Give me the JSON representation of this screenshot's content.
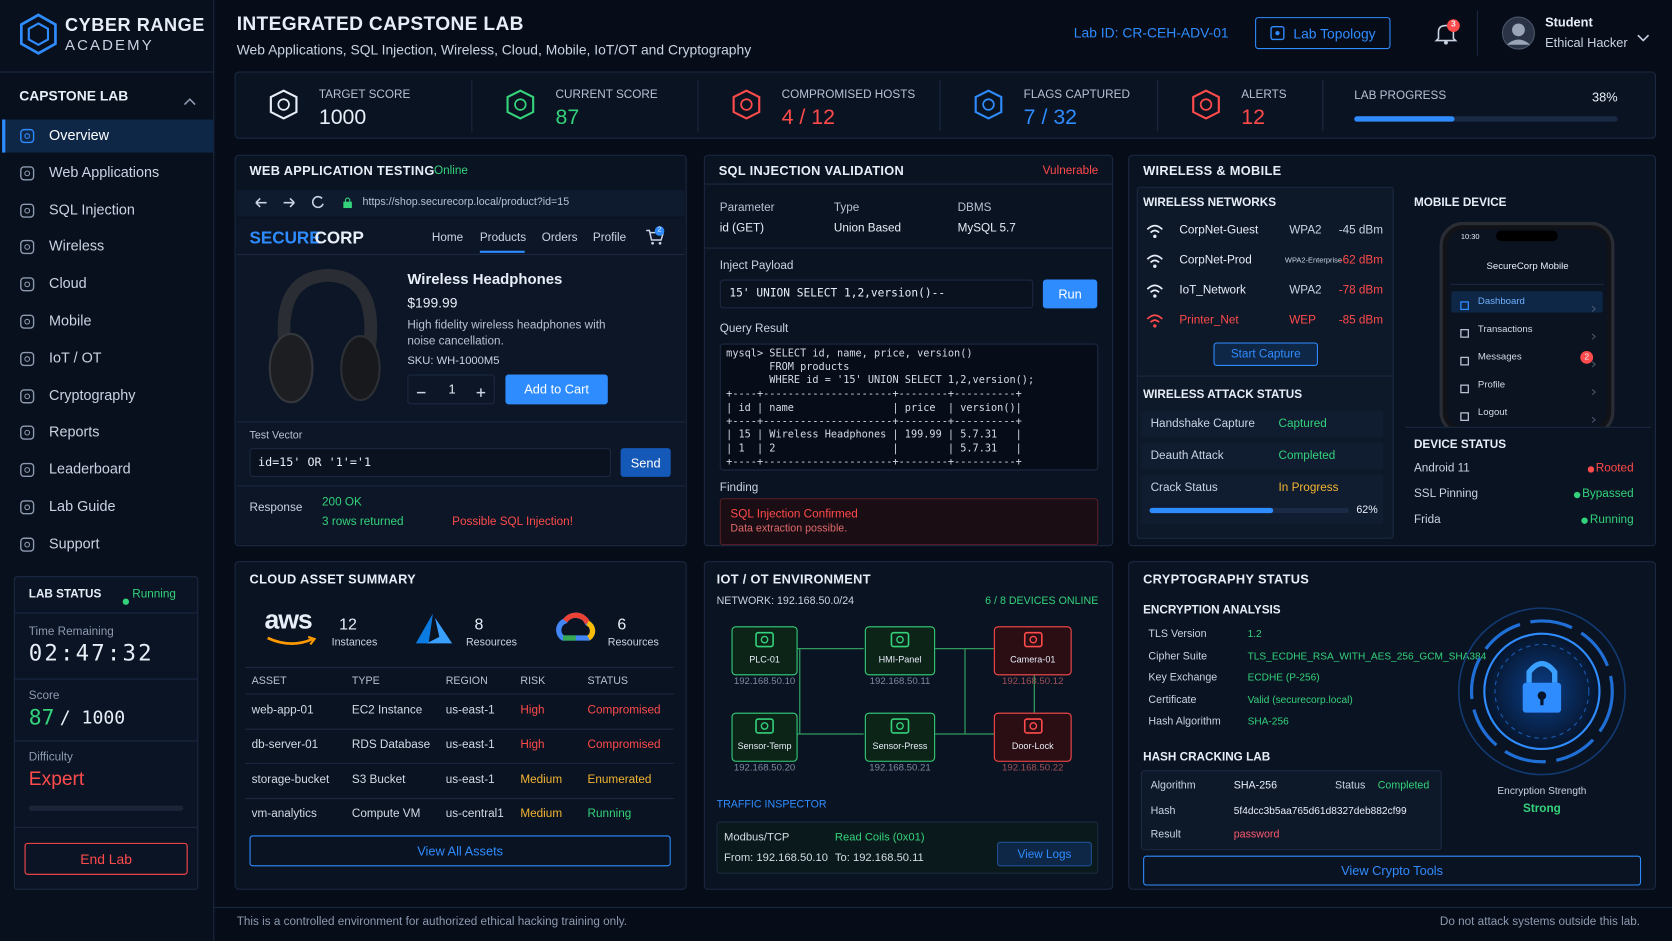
{
  "sidebar": {
    "brand": {
      "name": "CYBER RANGE",
      "subtitle": "ACADEMY"
    },
    "section": "CAPSTONE LAB",
    "nav": [
      "Overview",
      "Web Applications",
      "SQL Injection",
      "Wireless",
      "Cloud",
      "Mobile",
      "IoT / OT",
      "Cryptography",
      "Reports",
      "Leaderboard",
      "Lab Guide",
      "Support"
    ],
    "lab_status": {
      "title": "LAB STATUS",
      "state": "Running",
      "time_label": "Time Remaining",
      "time": "02:47:32",
      "score_label": "Score",
      "score": "87",
      "score_total": "/ 1000",
      "difficulty_label": "Difficulty",
      "difficulty": "Expert",
      "end_button": "End Lab"
    }
  },
  "header": {
    "title": "INTEGRATED CAPSTONE LAB",
    "subtitle": "Web Applications, SQL Injection, Wireless, Cloud, Mobile, IoT/OT and Cryptography",
    "lab_id": "Lab ID: CR-CEH-ADV-01",
    "topology_button": "Lab Topology",
    "notifications": "3",
    "user": {
      "name": "Student",
      "role": "Ethical Hacker"
    }
  },
  "stats": [
    {
      "label": "TARGET SCORE",
      "value": "1000",
      "color": "#e8eef8"
    },
    {
      "label": "CURRENT SCORE",
      "value": "87",
      "color": "#34d27b"
    },
    {
      "label": "COMPROMISED HOSTS",
      "value": "4 / 12",
      "color": "#ff4b4b"
    },
    {
      "label": "FLAGS CAPTURED",
      "value": "7 / 32",
      "color": "#2f8cff"
    },
    {
      "label": "ALERTS",
      "value": "12",
      "color": "#ff4b4b"
    }
  ],
  "progress": {
    "label": "LAB PROGRESS",
    "value": 38,
    "value_label": "38%"
  },
  "web": {
    "title": "WEB APPLICATION TESTING",
    "status": "Online",
    "url": "https://shop.securecorp.local/product?id=15",
    "brand_a": "SECURE",
    "brand_b": "CORP",
    "nav": [
      "Home",
      "Products",
      "Orders",
      "Profile"
    ],
    "cart_badge": "2",
    "product": {
      "name": "Wireless Headphones",
      "price": "$199.99",
      "description": "High fidelity wireless headphones with\nnoise cancellation.",
      "sku": "SKU: WH-1000M5",
      "quantity": "1",
      "add_button": "Add to Cart"
    },
    "test_label": "Test Vector",
    "test_input": "id=15' OR '1'='1",
    "send_button": "Send",
    "response_label": "Response",
    "response_code": "200 OK",
    "response_rows": "3 rows returned",
    "warning": "Possible SQL Injection!"
  },
  "sql": {
    "title": "SQL INJECTION VALIDATION",
    "status": "Vulnerable",
    "headers": [
      "Parameter",
      "Type",
      "DBMS"
    ],
    "values": [
      "id (GET)",
      "Union Based",
      "MySQL 5.7"
    ],
    "payload_label": "Inject Payload",
    "payload": "15' UNION SELECT 1,2,version()--",
    "run_button": "Run",
    "result_label": "Query Result",
    "console": [
      "mysql> SELECT id, name, price, version()",
      "       FROM products",
      "       WHERE id = '15' UNION SELECT 1,2,version();",
      "+----+---------------------+--------+----------+",
      "| id | name                | price  | version()|",
      "+----+---------------------+--------+----------+",
      "| 15 | Wireless Headphones | 199.99 | 5.7.31   |",
      "| 1  | 2                   |        | 5.7.31   |",
      "+----+---------------------+--------+----------+"
    ],
    "finding_label": "Finding",
    "finding_title": "SQL Injection Confirmed",
    "finding_text": "Data extraction possible."
  },
  "wireless": {
    "title": "WIRELESS & MOBILE",
    "networks_title": "WIRELESS NETWORKS",
    "networks": [
      {
        "name": "CorpNet-Guest",
        "security": "WPA2",
        "signal": "-45 dBm",
        "color": "#e8eef8"
      },
      {
        "name": "CorpNet-Prod",
        "security": "WPA2-Enterprise",
        "signal": "-62 dBm",
        "color": "#e8eef8"
      },
      {
        "name": "IoT_Network",
        "security": "WPA2",
        "signal": "-78 dBm",
        "color": "#e8eef8"
      },
      {
        "name": "Printer_Net",
        "security": "WEP",
        "signal": "-85 dBm",
        "color": "#ff4b4b"
      }
    ],
    "capture_button": "Start Capture",
    "attack_title": "WIRELESS ATTACK STATUS",
    "attacks": [
      {
        "label": "Handshake Capture",
        "value": "Captured",
        "color": "#34d27b"
      },
      {
        "label": "Deauth Attack",
        "value": "Completed",
        "color": "#34d27b"
      },
      {
        "label": "Crack Status",
        "value": "In Progress",
        "color": "#f2b533"
      }
    ],
    "crack_progress": {
      "value": 62,
      "value_label": "62%"
    },
    "mobile_title": "MOBILE DEVICE",
    "phone": {
      "time": "10:30",
      "app": "SecureCorp Mobile",
      "menu": [
        "Dashboard",
        "Transactions",
        "Messages",
        "Profile",
        "Logout"
      ],
      "badge": "2"
    },
    "device_title": "DEVICE STATUS",
    "device": [
      {
        "label": "Android 11",
        "value": "Rooted",
        "color": "#ff4b4b"
      },
      {
        "label": "SSL Pinning",
        "value": "Bypassed",
        "color": "#34d27b"
      },
      {
        "label": "Frida",
        "value": "Running",
        "color": "#34d27b"
      }
    ]
  },
  "cloud": {
    "title": "CLOUD ASSET SUMMARY",
    "providers": [
      {
        "logo": "aws",
        "count": "12",
        "unit": "Instances"
      },
      {
        "count": "8",
        "unit": "Resources"
      },
      {
        "count": "6",
        "unit": "Resources"
      }
    ],
    "table": {
      "headers": [
        "ASSET",
        "TYPE",
        "REGION",
        "RISK",
        "STATUS"
      ],
      "rows": [
        [
          "web-app-01",
          "EC2 Instance",
          "us-east-1",
          "High",
          "Compromised"
        ],
        [
          "db-server-01",
          "RDS Database",
          "us-east-1",
          "High",
          "Compromised"
        ],
        [
          "storage-bucket",
          "S3 Bucket",
          "us-east-1",
          "Medium",
          "Enumerated"
        ],
        [
          "vm-analytics",
          "Compute VM",
          "us-central1",
          "Medium",
          "Running"
        ]
      ],
      "row_colors": [
        [
          "#ff4b4b",
          "#ff4b4b"
        ],
        [
          "#ff4b4b",
          "#ff4b4b"
        ],
        [
          "#f2b533",
          "#f2b533"
        ],
        [
          "#f2b533",
          "#34d27b"
        ]
      ]
    },
    "button": "View All Assets"
  },
  "iot": {
    "title": "IOT / OT ENVIRONMENT",
    "network": "NETWORK: 192.168.50.0/24",
    "online": "6 / 8 DEVICES ONLINE",
    "devices": [
      {
        "name": "PLC-01",
        "ip": "192.168.50.10",
        "color": "#34d27b"
      },
      {
        "name": "HMI-Panel",
        "ip": "192.168.50.11",
        "color": "#34d27b"
      },
      {
        "name": "Camera-01",
        "ip": "192.168.50.12",
        "color": "#ff4b4b"
      },
      {
        "name": "Sensor-Temp",
        "ip": "192.168.50.20",
        "color": "#34d27b"
      },
      {
        "name": "Sensor-Press",
        "ip": "192.168.50.21",
        "color": "#34d27b"
      },
      {
        "name": "Door-Lock",
        "ip": "192.168.50.22",
        "color": "#ff4b4b"
      }
    ],
    "inspector_title": "TRAFFIC INSPECTOR",
    "protocol": "Modbus/TCP",
    "function": "Read Coils (0x01)",
    "from": "From: 192.168.50.10",
    "to": "To: 192.168.50.11",
    "button": "View Logs"
  },
  "crypto": {
    "title": "CRYPTOGRAPHY STATUS",
    "analysis_title": "ENCRYPTION ANALYSIS",
    "analysis": [
      [
        "TLS Version",
        "1.2"
      ],
      [
        "Cipher Suite",
        "TLS_ECDHE_RSA_WITH_AES_256_GCM_SHA384"
      ],
      [
        "Key Exchange",
        "ECDHE (P-256)"
      ],
      [
        "Certificate",
        "Valid (securecorp.local)"
      ],
      [
        "Hash Algorithm",
        "SHA-256"
      ]
    ],
    "strength_label": "Encryption Strength",
    "strength": "Strong",
    "hash_title": "HASH CRACKING LAB",
    "hash": {
      "algorithm_label": "Algorithm",
      "algorithm": "SHA-256",
      "status_label": "Status",
      "status": "Completed",
      "hash_label": "Hash",
      "hash": "5f4dcc3b5aa765d61d8327deb882cf99",
      "result_label": "Result",
      "result": "password"
    },
    "button": "View Crypto Tools"
  },
  "footer": {
    "left": "This is a controlled environment for authorized ethical hacking training only.",
    "right": "Do not attack systems outside this lab."
  }
}
